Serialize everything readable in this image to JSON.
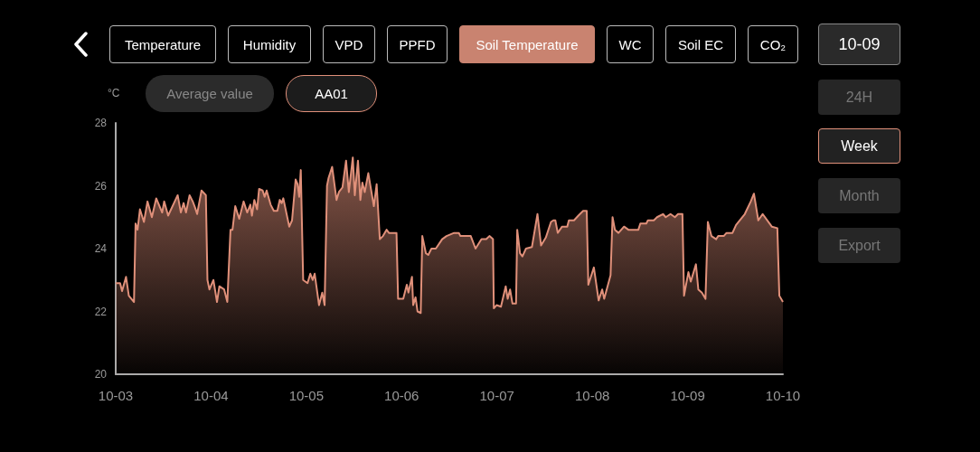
{
  "chart_data": {
    "type": "area",
    "ylabel": "°C",
    "annotations": [
      "Temperature",
      "Humidity",
      "VPD",
      "PPFD",
      "Soil Temperature",
      "WC",
      "Soil EC",
      "CO₂",
      "10-09",
      "Average value",
      "AA01",
      "24H",
      "Week",
      "Month",
      "Export"
    ],
    "xlim": [
      "--10-03",
      "--10-10"
    ],
    "xticks": [
      {
        "value": "--10-03",
        "label": "10-03"
      },
      {
        "value": "--10-04",
        "label": "10-04"
      },
      {
        "value": "--10-05",
        "label": "10-05"
      },
      {
        "value": "--10-06",
        "label": "10-06"
      },
      {
        "value": "--10-07",
        "label": "10-07"
      },
      {
        "value": "--10-08",
        "label": "10-08"
      },
      {
        "value": "--10-09",
        "label": "10-09"
      },
      {
        "value": "--10-10",
        "label": "10-10"
      }
    ],
    "ylim": [
      20,
      28
    ],
    "yticks": [
      20,
      22,
      24,
      26,
      28
    ],
    "grid": false,
    "marker": "none",
    "line_style": "solid",
    "series": [
      {
        "color": "#e0907a",
        "x": [
          "--10-03T00:00",
          "--10-03T01:06",
          "--10-03T01:36",
          "--10-03T02:36",
          "--10-03T03:18",
          "--10-03T04:36",
          "--10-03T05:00",
          "--10-03T05:30",
          "--10-03T06:06",
          "--10-03T07:06",
          "--10-03T08:00",
          "--10-03T09:06",
          "--10-03T10:12",
          "--10-03T11:42",
          "--10-03T12:12",
          "--10-03T13:12",
          "--10-03T15:36",
          "--10-03T16:24",
          "--10-03T17:06",
          "--10-03T17:42",
          "--10-03T18:36",
          "--10-03T19:24",
          "--10-03T20:00",
          "--10-03T20:30",
          "--10-03T21:36",
          "--10-03T22:42",
          "--10-03T23:06",
          "--10-03T23:36",
          "--10-04T00:36",
          "--10-04T01:30",
          "--10-04T02:06",
          "--10-04T03:18",
          "--10-04T04:06",
          "--10-04T04:54",
          "--10-04T05:24",
          "--10-04T06:06",
          "--10-04T07:06",
          "--10-04T08:12",
          "--10-04T09:06",
          "--10-04T09:54",
          "--10-04T10:18",
          "--10-04T10:54",
          "--10-04T11:36",
          "--10-04T12:06",
          "--10-04T13:00",
          "--10-04T13:30",
          "--10-04T14:00",
          "--10-04T15:00",
          "--10-04T15:48",
          "--10-04T16:42",
          "--10-04T17:18",
          "--10-04T17:48",
          "--10-04T18:12",
          "--10-04T19:42",
          "--10-04T20:24",
          "--10-04T21:18",
          "--10-04T21:48",
          "--10-04T22:12",
          "--10-04T22:36",
          "--10-04T23:12",
          "--10-05T00:18",
          "--10-05T01:00",
          "--10-05T01:36",
          "--10-05T02:06",
          "--10-05T03:12",
          "--10-05T04:00",
          "--10-05T04:36",
          "--10-05T05:12",
          "--10-05T05:36",
          "--10-05T06:30",
          "--10-05T07:36",
          "--10-05T08:12",
          "--10-05T09:06",
          "--10-05T10:00",
          "--10-05T10:42",
          "--10-05T11:42",
          "--10-05T12:12",
          "--10-05T13:00",
          "--10-05T13:36",
          "--10-05T14:06",
          "--10-05T14:42",
          "--10-05T15:36",
          "--10-05T17:00",
          "--10-05T17:42",
          "--10-05T18:30",
          "--10-05T19:18",
          "--10-05T20:12",
          "--10-05T20:48",
          "--10-05T22:42",
          "--10-05T23:06",
          "--10-06T00:24",
          "--10-06T01:18",
          "--10-06T01:42",
          "--10-06T02:36",
          "--10-06T02:54",
          "--10-06T03:30",
          "--10-06T04:00",
          "--10-06T04:48",
          "--10-06T05:12",
          "--10-06T06:06",
          "--10-06T06:42",
          "--10-06T07:30",
          "--10-06T08:36",
          "--10-06T10:12",
          "--10-06T11:18",
          "--10-06T13:12",
          "--10-06T14:24",
          "--10-06T14:48",
          "--10-06T17:24",
          "--10-06T18:36",
          "--10-06T20:06",
          "--10-06T21:18",
          "--10-06T22:06",
          "--10-06T23:00",
          "--10-06T23:12",
          "--10-06T23:54",
          "--10-07T01:00",
          "--10-07T02:12",
          "--10-07T02:42",
          "--10-07T03:18",
          "--10-07T03:54",
          "--10-07T04:48",
          "--10-07T05:06",
          "--10-07T05:48",
          "--10-07T06:24",
          "--10-07T07:18",
          "--10-07T08:48",
          "--10-07T10:12",
          "--10-07T11:06",
          "--10-07T12:18",
          "--10-07T13:36",
          "--10-07T14:12",
          "--10-07T14:42",
          "--10-07T15:18",
          "--10-07T16:24",
          "--10-07T17:42",
          "--10-07T18:06",
          "--10-07T19:24",
          "--10-07T20:30",
          "--10-07T21:42",
          "--10-07T22:36",
          "--10-07T23:00",
          "--10-08T00:24",
          "--10-08T01:36",
          "--10-08T02:30",
          "--10-08T03:00",
          "--10-08T04:36",
          "--10-08T05:06",
          "--10-08T05:42",
          "--10-08T06:36",
          "--10-08T08:00",
          "--10-08T09:06",
          "--10-08T11:36",
          "--10-08T12:06",
          "--10-08T13:36",
          "--10-08T14:00",
          "--10-08T15:30",
          "--10-08T16:18",
          "--10-08T17:48",
          "--10-08T18:30",
          "--10-08T19:42",
          "--10-08T20:48",
          "--10-08T21:36",
          "--10-08T22:42",
          "--10-08T23:06",
          "--10-09T00:12",
          "--10-09T00:48",
          "--10-09T02:06",
          "--10-09T02:42",
          "--10-09T03:36",
          "--10-09T04:30",
          "--10-09T05:06",
          "--10-09T06:00",
          "--10-09T07:12",
          "--10-09T07:42",
          "--10-09T09:06",
          "--10-09T09:48",
          "--10-09T11:18",
          "--10-09T12:12",
          "--10-09T14:24",
          "--10-09T15:54",
          "--10-09T16:42",
          "--10-09T17:48",
          "--10-09T18:54",
          "--10-09T21:12",
          "--10-09T22:36",
          "--10-09T23:06",
          "--10-10T00:00"
        ],
        "values": [
          22.9,
          22.9,
          22.65,
          23.1,
          22.5,
          22.3,
          24.8,
          24.6,
          25.25,
          24.85,
          25.5,
          25.0,
          25.6,
          25.15,
          25.5,
          25.05,
          25.7,
          25.15,
          25.45,
          25.15,
          25.7,
          25.5,
          25.3,
          25.1,
          25.85,
          25.7,
          23.0,
          22.7,
          23.0,
          22.3,
          22.8,
          22.7,
          22.3,
          24.6,
          24.6,
          25.35,
          24.95,
          25.5,
          25.15,
          25.4,
          25.05,
          25.55,
          25.25,
          25.9,
          25.85,
          25.65,
          25.85,
          25.4,
          25.2,
          25.2,
          25.55,
          25.45,
          25.6,
          24.7,
          24.9,
          26.2,
          26.05,
          25.65,
          26.5,
          23.0,
          22.9,
          23.2,
          23.0,
          23.2,
          22.2,
          22.6,
          22.2,
          26.0,
          26.25,
          26.6,
          25.55,
          25.8,
          25.95,
          26.8,
          25.8,
          26.9,
          25.7,
          26.8,
          25.55,
          26.1,
          25.8,
          26.4,
          25.35,
          26.05,
          24.3,
          24.4,
          24.6,
          24.5,
          24.5,
          22.4,
          22.4,
          22.85,
          22.6,
          23.1,
          22.2,
          22.45,
          22.0,
          21.95,
          24.4,
          23.85,
          23.8,
          24.0,
          24.0,
          24.3,
          24.4,
          24.5,
          24.5,
          24.4,
          24.4,
          24.0,
          24.3,
          24.3,
          24.4,
          24.3,
          22.1,
          22.2,
          22.15,
          22.8,
          22.4,
          22.7,
          22.25,
          22.25,
          24.6,
          23.85,
          23.75,
          24.0,
          24.05,
          25.1,
          24.1,
          24.35,
          24.85,
          24.9,
          24.9,
          24.5,
          24.7,
          24.7,
          24.9,
          24.9,
          25.05,
          25.2,
          25.2,
          22.85,
          23.4,
          22.35,
          22.7,
          22.4,
          23.15,
          25.0,
          24.6,
          24.5,
          24.7,
          24.6,
          24.6,
          24.8,
          24.8,
          24.9,
          24.9,
          25.0,
          25.1,
          25.0,
          25.1,
          25.0,
          25.1,
          25.1,
          22.5,
          23.25,
          22.95,
          23.5,
          22.7,
          22.6,
          22.4,
          24.85,
          24.4,
          24.3,
          24.4,
          24.4,
          24.5,
          24.5,
          24.75,
          25.1,
          25.5,
          25.75,
          24.9,
          25.1,
          24.7,
          24.65,
          22.5,
          22.3
        ]
      }
    ]
  }
}
